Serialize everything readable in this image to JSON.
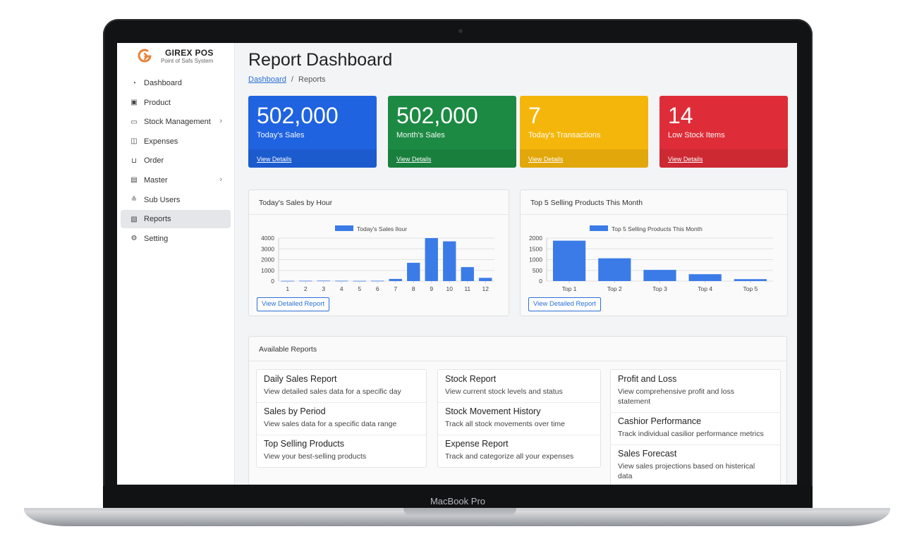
{
  "device": {
    "label": "MacBook Pro"
  },
  "brand": {
    "name": "GIREX POS",
    "subtitle": "Point of Safs System"
  },
  "sidebar": {
    "items": [
      {
        "label": "Dashboard",
        "icon": "dashboard-icon",
        "active": false,
        "has_arrow": false
      },
      {
        "label": "Product",
        "icon": "box-icon",
        "active": false,
        "has_arrow": false
      },
      {
        "label": "Stock Management",
        "icon": "inventory-icon",
        "active": false,
        "has_arrow": true
      },
      {
        "label": "Expenses",
        "icon": "wallet-icon",
        "active": false,
        "has_arrow": false
      },
      {
        "label": "Order",
        "icon": "cart-icon",
        "active": false,
        "has_arrow": false
      },
      {
        "label": "Master",
        "icon": "database-icon",
        "active": false,
        "has_arrow": true
      },
      {
        "label": "Sub Users",
        "icon": "users-icon",
        "active": false,
        "has_arrow": false
      },
      {
        "label": "Reports",
        "icon": "report-icon",
        "active": true,
        "has_arrow": false
      },
      {
        "label": "Setting",
        "icon": "gear-icon",
        "active": false,
        "has_arrow": false
      }
    ]
  },
  "header": {
    "title": "Report Dashboard",
    "breadcrumb": {
      "home": "Dashboard",
      "separator": "/",
      "current": "Reports"
    }
  },
  "stats": [
    {
      "value": "502,000",
      "label": "Today's Sales",
      "link": "View Details",
      "color": "#1f63e0"
    },
    {
      "value": "502,000",
      "label": "Month's Sales",
      "link": "View Details",
      "color": "#1c8a43"
    },
    {
      "value": "7",
      "label": "Today's Transactions",
      "link": "View Details",
      "color": "#f5b60c"
    },
    {
      "value": "14",
      "label": "Low Stock Items",
      "link": "View Details",
      "color": "#de2d38"
    }
  ],
  "charts": {
    "hourly": {
      "title": "Today's Sales by Hour",
      "button": "View Detailed Report"
    },
    "top5": {
      "title": "Top 5 Selling Products This Month",
      "button": "View Detailed Report"
    }
  },
  "chart_data": [
    {
      "type": "bar",
      "title": "",
      "categories": [
        "1",
        "2",
        "3",
        "4",
        "5",
        "6",
        "7",
        "8",
        "9",
        "10",
        "11",
        "12"
      ],
      "series": [
        {
          "name": "Today's Sales Ilour",
          "values": [
            20,
            30,
            40,
            30,
            20,
            30,
            200,
            1700,
            4000,
            3700,
            1300,
            300
          ]
        }
      ],
      "yticks": [
        "0",
        "1000",
        "2000",
        "3000",
        "4000"
      ],
      "ylim": [
        0,
        4000
      ],
      "legend": "top",
      "grid": true,
      "color": "#3b7be8"
    },
    {
      "type": "bar",
      "title": "",
      "categories": [
        "Top 1",
        "Top 2",
        "Top 3",
        "Top 4",
        "Top 5"
      ],
      "series": [
        {
          "name": "Top 5 Selling Products This Month",
          "values": [
            1880,
            1060,
            520,
            320,
            90
          ]
        }
      ],
      "yticks": [
        "0",
        "500",
        "1000",
        "1500",
        "2000"
      ],
      "ylim": [
        0,
        2000
      ],
      "legend": "top",
      "grid": true,
      "color": "#3b7be8"
    }
  ],
  "reports": {
    "title": "Available Reports",
    "columns": [
      [
        {
          "title": "Daily Sales Report",
          "desc": "View detailed sales data for a specific day"
        },
        {
          "title": "Sales by Period",
          "desc": "View sales data for a specific data range"
        },
        {
          "title": "Top Selling Products",
          "desc": "View your best-selling products"
        }
      ],
      [
        {
          "title": "Stock Report",
          "desc": "View current stock levels and status"
        },
        {
          "title": "Stock Movement History",
          "desc": "Track all stock movements over time"
        },
        {
          "title": "Expense Report",
          "desc": "Track and categorize all your expenses"
        }
      ],
      [
        {
          "title": "Profit and Loss",
          "desc": "View comprehensive profit and loss statement"
        },
        {
          "title": "Cashior Performance",
          "desc": "Track individual casilior performance metrics"
        },
        {
          "title": "Sales Forecast",
          "desc": "View sales projections based on histerical data"
        }
      ]
    ]
  }
}
